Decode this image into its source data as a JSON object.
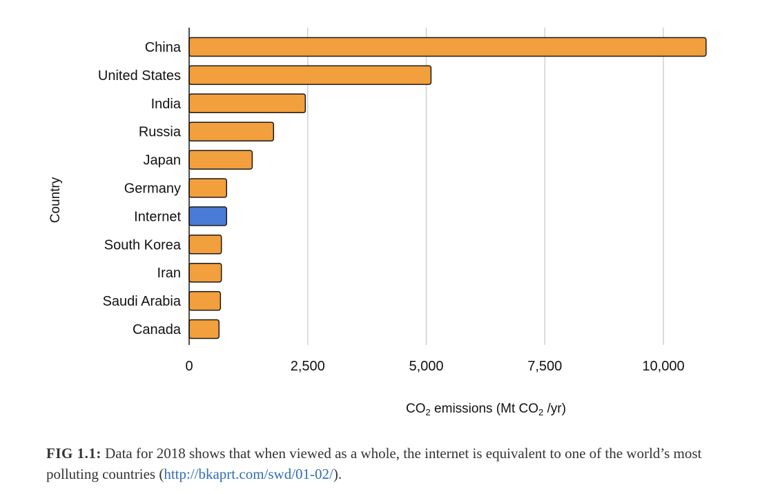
{
  "chart_data": {
    "type": "bar",
    "orientation": "horizontal",
    "categories": [
      "China",
      "United States",
      "India",
      "Russia",
      "Japan",
      "Germany",
      "Internet",
      "South Korea",
      "Iran",
      "Saudi Arabia",
      "Canada"
    ],
    "values": [
      10900,
      5100,
      2450,
      1780,
      1330,
      790,
      790,
      680,
      680,
      660,
      630
    ],
    "highlight_category": "Internet",
    "colors": {
      "default": "#f29f3d",
      "highlight": "#4a7bd6",
      "stroke": "#1a1a1a",
      "grid": "#d0d0d0"
    },
    "xlim": [
      0,
      11000
    ],
    "xticks": [
      0,
      2500,
      5000,
      7500,
      10000
    ],
    "xtick_labels": [
      "0",
      "2,500",
      "5,000",
      "7,500",
      "10,000"
    ],
    "xlabel_parts": [
      "CO",
      "2",
      " emissions (Mt CO",
      "2",
      " /yr)"
    ],
    "ylabel": "Country",
    "grid": "vertical",
    "legend": "none"
  },
  "caption": {
    "fig_label": "FIG 1.1:",
    "text": " Data for 2018 shows that when viewed as a whole, the internet is equivalent to one of the world’s most polluting countries (",
    "link": "http://bkaprt.com/swd/01-02/",
    "end": ")."
  }
}
